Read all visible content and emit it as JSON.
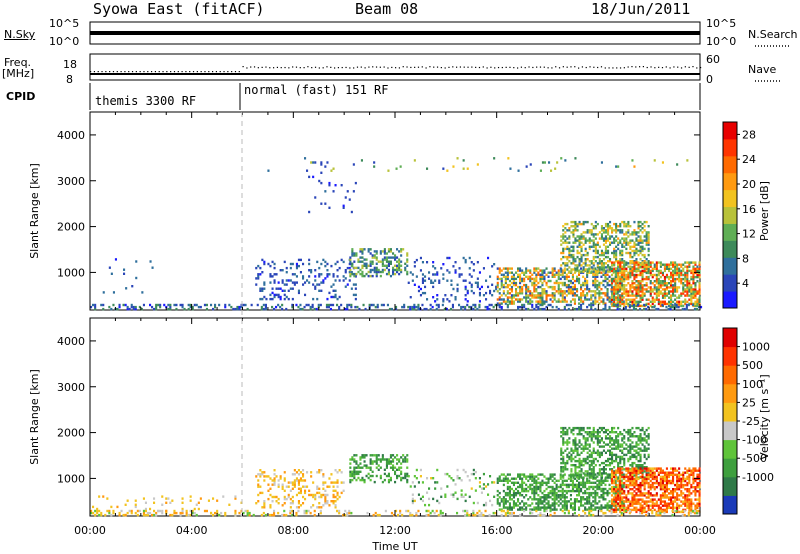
{
  "header": {
    "title": "Syowa East (fitACF)",
    "beam": "Beam 08",
    "date": "18/Jun/2011"
  },
  "top_panels": {
    "nsky_label": "N.Sky",
    "nsky_top": "10^5",
    "nsky_bottom": "10^0",
    "nsky_right_top": "10^5",
    "nsky_right_bottom": "10^0",
    "nsearch_label": "N.Search",
    "freq_label": "Freq.",
    "freq_unit": "[MHz]",
    "freq_left_top": "18",
    "freq_left_bottom": "8",
    "freq_right_top": "60",
    "freq_right_bottom": "0",
    "nave_label": "Nave",
    "cpid_label": "CPID",
    "cpid_segments": [
      {
        "label": "themis 3300 RF",
        "start_hour": 0,
        "end_hour": 6
      },
      {
        "label": "normal (fast) 151 RF",
        "start_hour": 6,
        "end_hour": 24
      }
    ]
  },
  "chart_data": [
    {
      "type": "heatmap",
      "panel": "power",
      "ylabel": "Slant Range [km]",
      "ylim": [
        180,
        4500
      ],
      "xlim": [
        0,
        24
      ],
      "yticks": [
        "1000",
        "2000",
        "3000",
        "4000"
      ],
      "colorbar": {
        "label": "Power [dB]",
        "ticks": [
          "4",
          "8",
          "12",
          "16",
          "20",
          "24",
          "28"
        ],
        "range": [
          0,
          30
        ],
        "colors": [
          "#1a1aff",
          "#2a45b8",
          "#2f6f9c",
          "#3d8a5a",
          "#5fae55",
          "#b8c23a",
          "#f2c320",
          "#ff9a10",
          "#ff6a00",
          "#ff3500",
          "#e80000"
        ]
      },
      "regions": [
        {
          "t": [
            0.5,
            2.5
          ],
          "r": [
            500,
            1300
          ],
          "density": 0.03,
          "v": [
            2,
            8
          ]
        },
        {
          "t": [
            6.5,
            10.5
          ],
          "r": [
            400,
            1300
          ],
          "density": 0.18,
          "v": [
            2,
            8
          ]
        },
        {
          "t": [
            10.2,
            12.5
          ],
          "r": [
            900,
            1500
          ],
          "density": 0.45,
          "v": [
            4,
            16
          ]
        },
        {
          "t": [
            12.5,
            16
          ],
          "r": [
            350,
            1300
          ],
          "density": 0.12,
          "v": [
            2,
            8
          ]
        },
        {
          "t": [
            16,
            21
          ],
          "r": [
            300,
            1100
          ],
          "density": 0.55,
          "v": [
            4,
            24
          ]
        },
        {
          "t": [
            18.5,
            22
          ],
          "r": [
            1000,
            2100
          ],
          "density": 0.5,
          "v": [
            6,
            20
          ]
        },
        {
          "t": [
            20.5,
            24
          ],
          "r": [
            250,
            1200
          ],
          "density": 0.65,
          "v": [
            8,
            28
          ]
        },
        {
          "t": [
            0,
            24
          ],
          "r": [
            180,
            300
          ],
          "density": 0.35,
          "v": [
            2,
            10
          ]
        },
        {
          "t": [
            8.5,
            10.5
          ],
          "r": [
            2300,
            3400
          ],
          "density": 0.04,
          "v": [
            2,
            6
          ]
        },
        {
          "t": [
            6.5,
            23.5
          ],
          "r": [
            3200,
            3500
          ],
          "density": 0.03,
          "v": [
            4,
            20
          ]
        }
      ]
    },
    {
      "type": "heatmap",
      "panel": "velocity",
      "xlabel": "Time UT",
      "ylabel": "Slant Range [km]",
      "ylim": [
        180,
        4500
      ],
      "xlim": [
        0,
        24
      ],
      "xticks": [
        "00:00",
        "04:00",
        "08:00",
        "12:00",
        "16:00",
        "20:00",
        "00:00"
      ],
      "yticks": [
        "1000",
        "2000",
        "3000",
        "4000"
      ],
      "colorbar": {
        "label": "Velocity [m s⁻¹]",
        "ticks": [
          "1000",
          "500",
          "100",
          "25",
          "-25",
          "-100",
          "-500",
          "-1000"
        ],
        "colors": [
          "#1a3ab8",
          "#2f7a48",
          "#3e9f3e",
          "#5fc43a",
          "#c8c8c8",
          "#f2c320",
          "#ff9a10",
          "#ff6a00",
          "#ff3300",
          "#e00000"
        ]
      },
      "regions": [
        {
          "t": [
            0,
            6
          ],
          "r": [
            180,
            600
          ],
          "density": 0.08,
          "v": [
            4,
            6
          ]
        },
        {
          "t": [
            6.5,
            10
          ],
          "r": [
            350,
            1200
          ],
          "density": 0.25,
          "v": [
            4,
            6
          ]
        },
        {
          "t": [
            10.2,
            12.5
          ],
          "r": [
            900,
            1500
          ],
          "density": 0.45,
          "v": [
            1,
            3
          ]
        },
        {
          "t": [
            12.5,
            16
          ],
          "r": [
            400,
            1200
          ],
          "density": 0.12,
          "v": [
            1,
            5
          ]
        },
        {
          "t": [
            16,
            21
          ],
          "r": [
            300,
            1100
          ],
          "density": 0.55,
          "v": [
            1,
            3
          ]
        },
        {
          "t": [
            18.5,
            22
          ],
          "r": [
            1000,
            2100
          ],
          "density": 0.5,
          "v": [
            1,
            3
          ]
        },
        {
          "t": [
            20.5,
            24
          ],
          "r": [
            250,
            1200
          ],
          "density": 0.65,
          "v": [
            5,
            9
          ]
        },
        {
          "t": [
            0,
            24
          ],
          "r": [
            180,
            300
          ],
          "density": 0.3,
          "v": [
            3,
            6
          ]
        }
      ]
    }
  ]
}
